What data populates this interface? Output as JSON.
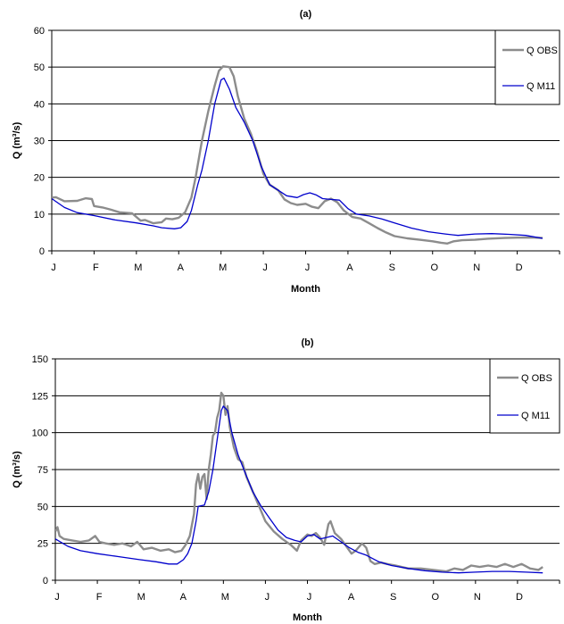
{
  "chart_data": [
    {
      "type": "line",
      "title": "(a)",
      "xlabel": "Month",
      "ylabel": "Q (m³/s)",
      "categories": [
        "J",
        "F",
        "M",
        "A",
        "M",
        "J",
        "J",
        "A",
        "S",
        "O",
        "N",
        "D"
      ],
      "ylim": [
        0,
        60
      ],
      "yticks": [
        0,
        10,
        20,
        30,
        40,
        50,
        60
      ],
      "grid": true,
      "legend_position": "top-right",
      "series": [
        {
          "name": "Q OBS",
          "color": "#8c8c8c",
          "points": [
            [
              0,
              14.5
            ],
            [
              0.1,
              14.6
            ],
            [
              0.3,
              13.5
            ],
            [
              0.6,
              13.6
            ],
            [
              0.8,
              14.3
            ],
            [
              0.95,
              14.1
            ],
            [
              1.0,
              12.2
            ],
            [
              1.2,
              11.8
            ],
            [
              1.4,
              11.2
            ],
            [
              1.6,
              10.5
            ],
            [
              1.9,
              10.2
            ],
            [
              2.1,
              8.2
            ],
            [
              2.2,
              8.4
            ],
            [
              2.4,
              7.5
            ],
            [
              2.6,
              7.8
            ],
            [
              2.7,
              8.8
            ],
            [
              2.85,
              8.6
            ],
            [
              3.0,
              9.0
            ],
            [
              3.15,
              10.5
            ],
            [
              3.3,
              14.5
            ],
            [
              3.4,
              20
            ],
            [
              3.55,
              30
            ],
            [
              3.7,
              38
            ],
            [
              3.85,
              45
            ],
            [
              3.95,
              49
            ],
            [
              4.05,
              50.2
            ],
            [
              4.2,
              50.0
            ],
            [
              4.3,
              47.5
            ],
            [
              4.4,
              42
            ],
            [
              4.55,
              36
            ],
            [
              4.7,
              32
            ],
            [
              4.85,
              27
            ],
            [
              5.0,
              21
            ],
            [
              5.15,
              18
            ],
            [
              5.35,
              16.5
            ],
            [
              5.5,
              14
            ],
            [
              5.65,
              13
            ],
            [
              5.8,
              12.5
            ],
            [
              6.0,
              12.8
            ],
            [
              6.15,
              12
            ],
            [
              6.3,
              11.6
            ],
            [
              6.45,
              13.5
            ],
            [
              6.6,
              14.2
            ],
            [
              6.75,
              13.2
            ],
            [
              6.9,
              11
            ],
            [
              7.1,
              9.2
            ],
            [
              7.3,
              8.8
            ],
            [
              7.5,
              7.5
            ],
            [
              7.7,
              6.2
            ],
            [
              7.9,
              5.0
            ],
            [
              8.1,
              4.0
            ],
            [
              8.4,
              3.4
            ],
            [
              8.7,
              3.0
            ],
            [
              9.0,
              2.6
            ],
            [
              9.2,
              2.2
            ],
            [
              9.35,
              2.0
            ],
            [
              9.5,
              2.6
            ],
            [
              9.7,
              2.9
            ],
            [
              10.0,
              3.0
            ],
            [
              10.3,
              3.3
            ],
            [
              10.7,
              3.5
            ],
            [
              11.0,
              3.6
            ],
            [
              11.4,
              3.6
            ],
            [
              11.6,
              3.5
            ]
          ]
        },
        {
          "name": "Q M11",
          "color": "#0000cc",
          "points": [
            [
              0,
              14.2
            ],
            [
              0.3,
              11.8
            ],
            [
              0.6,
              10.4
            ],
            [
              1.0,
              9.6
            ],
            [
              1.5,
              8.4
            ],
            [
              2.0,
              7.6
            ],
            [
              2.4,
              6.8
            ],
            [
              2.6,
              6.3
            ],
            [
              2.9,
              6.0
            ],
            [
              3.05,
              6.3
            ],
            [
              3.2,
              8.0
            ],
            [
              3.3,
              11
            ],
            [
              3.45,
              18
            ],
            [
              3.55,
              22
            ],
            [
              3.7,
              30
            ],
            [
              3.85,
              40
            ],
            [
              4.0,
              46.5
            ],
            [
              4.07,
              47
            ],
            [
              4.2,
              44
            ],
            [
              4.35,
              39
            ],
            [
              4.55,
              35
            ],
            [
              4.75,
              30
            ],
            [
              4.95,
              23
            ],
            [
              5.15,
              18
            ],
            [
              5.35,
              16.5
            ],
            [
              5.55,
              15
            ],
            [
              5.8,
              14.5
            ],
            [
              5.95,
              15.3
            ],
            [
              6.1,
              15.8
            ],
            [
              6.25,
              15.2
            ],
            [
              6.4,
              14.2
            ],
            [
              6.6,
              14.0
            ],
            [
              6.8,
              13.8
            ],
            [
              7.0,
              11.5
            ],
            [
              7.2,
              10
            ],
            [
              7.5,
              9.5
            ],
            [
              7.8,
              8.7
            ],
            [
              8.1,
              7.6
            ],
            [
              8.5,
              6.2
            ],
            [
              8.9,
              5.2
            ],
            [
              9.3,
              4.6
            ],
            [
              9.6,
              4.2
            ],
            [
              10.0,
              4.6
            ],
            [
              10.4,
              4.7
            ],
            [
              10.8,
              4.5
            ],
            [
              11.2,
              4.2
            ],
            [
              11.6,
              3.4
            ]
          ]
        }
      ]
    },
    {
      "type": "line",
      "title": "(b)",
      "xlabel": "Month",
      "ylabel": "Q (m³/s)",
      "categories": [
        "J",
        "F",
        "M",
        "A",
        "M",
        "J",
        "J",
        "A",
        "S",
        "O",
        "N",
        "D"
      ],
      "ylim": [
        0,
        150
      ],
      "yticks": [
        0,
        25,
        50,
        75,
        100,
        125,
        150
      ],
      "grid": true,
      "legend_position": "top-right",
      "series": [
        {
          "name": "Q OBS",
          "color": "#8c8c8c",
          "points": [
            [
              0,
              33
            ],
            [
              0.05,
              36
            ],
            [
              0.1,
              30
            ],
            [
              0.2,
              28
            ],
            [
              0.4,
              27
            ],
            [
              0.6,
              26
            ],
            [
              0.8,
              27
            ],
            [
              0.95,
              30
            ],
            [
              1.05,
              26
            ],
            [
              1.2,
              25
            ],
            [
              1.4,
              24
            ],
            [
              1.6,
              25
            ],
            [
              1.8,
              23
            ],
            [
              1.95,
              26
            ],
            [
              2.1,
              21
            ],
            [
              2.3,
              22
            ],
            [
              2.5,
              20
            ],
            [
              2.7,
              21
            ],
            [
              2.85,
              19
            ],
            [
              3.0,
              20
            ],
            [
              3.1,
              24
            ],
            [
              3.2,
              30
            ],
            [
              3.3,
              45
            ],
            [
              3.35,
              65
            ],
            [
              3.4,
              72
            ],
            [
              3.45,
              62
            ],
            [
              3.5,
              70
            ],
            [
              3.55,
              72
            ],
            [
              3.6,
              55
            ],
            [
              3.65,
              75
            ],
            [
              3.7,
              85
            ],
            [
              3.75,
              98
            ],
            [
              3.8,
              100
            ],
            [
              3.85,
              110
            ],
            [
              3.9,
              115
            ],
            [
              3.95,
              127
            ],
            [
              4.0,
              125
            ],
            [
              4.05,
              112
            ],
            [
              4.1,
              118
            ],
            [
              4.15,
              104
            ],
            [
              4.25,
              90
            ],
            [
              4.35,
              82
            ],
            [
              4.45,
              80
            ],
            [
              4.55,
              70
            ],
            [
              4.7,
              60
            ],
            [
              4.85,
              50
            ],
            [
              5.0,
              40
            ],
            [
              5.2,
              33
            ],
            [
              5.4,
              28
            ],
            [
              5.6,
              24
            ],
            [
              5.75,
              20
            ],
            [
              5.85,
              27
            ],
            [
              6.0,
              31
            ],
            [
              6.1,
              30
            ],
            [
              6.2,
              32
            ],
            [
              6.3,
              29
            ],
            [
              6.4,
              24
            ],
            [
              6.5,
              38
            ],
            [
              6.55,
              40
            ],
            [
              6.65,
              32
            ],
            [
              6.8,
              28
            ],
            [
              6.95,
              22
            ],
            [
              7.05,
              18
            ],
            [
              7.15,
              20
            ],
            [
              7.3,
              25
            ],
            [
              7.4,
              22
            ],
            [
              7.5,
              13
            ],
            [
              7.6,
              11
            ],
            [
              7.75,
              12
            ],
            [
              7.9,
              11
            ],
            [
              8.1,
              10
            ],
            [
              8.4,
              8
            ],
            [
              8.7,
              8
            ],
            [
              9.0,
              7
            ],
            [
              9.3,
              6
            ],
            [
              9.5,
              8
            ],
            [
              9.7,
              7
            ],
            [
              9.9,
              10
            ],
            [
              10.1,
              9
            ],
            [
              10.3,
              10
            ],
            [
              10.5,
              9
            ],
            [
              10.7,
              11
            ],
            [
              10.9,
              9
            ],
            [
              11.1,
              11
            ],
            [
              11.3,
              8
            ],
            [
              11.5,
              7
            ],
            [
              11.6,
              9
            ]
          ]
        },
        {
          "name": "Q M11",
          "color": "#0000cc",
          "points": [
            [
              0,
              28
            ],
            [
              0.3,
              23
            ],
            [
              0.6,
              20
            ],
            [
              1.0,
              18
            ],
            [
              1.5,
              16
            ],
            [
              2.0,
              14
            ],
            [
              2.4,
              12.5
            ],
            [
              2.7,
              11
            ],
            [
              2.9,
              11
            ],
            [
              3.05,
              14
            ],
            [
              3.15,
              18
            ],
            [
              3.25,
              25
            ],
            [
              3.35,
              40
            ],
            [
              3.4,
              50
            ],
            [
              3.55,
              51
            ],
            [
              3.65,
              60
            ],
            [
              3.75,
              75
            ],
            [
              3.85,
              95
            ],
            [
              3.95,
              115
            ],
            [
              4.0,
              118
            ],
            [
              4.1,
              115
            ],
            [
              4.2,
              100
            ],
            [
              4.35,
              85
            ],
            [
              4.5,
              74
            ],
            [
              4.7,
              60
            ],
            [
              4.9,
              50
            ],
            [
              5.1,
              42
            ],
            [
              5.3,
              34
            ],
            [
              5.5,
              29
            ],
            [
              5.7,
              27
            ],
            [
              5.85,
              26
            ],
            [
              6.0,
              30
            ],
            [
              6.15,
              31
            ],
            [
              6.3,
              28
            ],
            [
              6.45,
              29
            ],
            [
              6.6,
              30
            ],
            [
              6.8,
              26
            ],
            [
              7.0,
              22
            ],
            [
              7.2,
              19
            ],
            [
              7.4,
              17
            ],
            [
              7.7,
              12.5
            ],
            [
              8.0,
              10
            ],
            [
              8.4,
              8
            ],
            [
              8.8,
              6.5
            ],
            [
              9.2,
              5.5
            ],
            [
              9.6,
              5
            ],
            [
              10.0,
              5.5
            ],
            [
              10.4,
              6
            ],
            [
              10.8,
              6
            ],
            [
              11.2,
              5.5
            ],
            [
              11.6,
              5
            ]
          ]
        }
      ]
    }
  ]
}
